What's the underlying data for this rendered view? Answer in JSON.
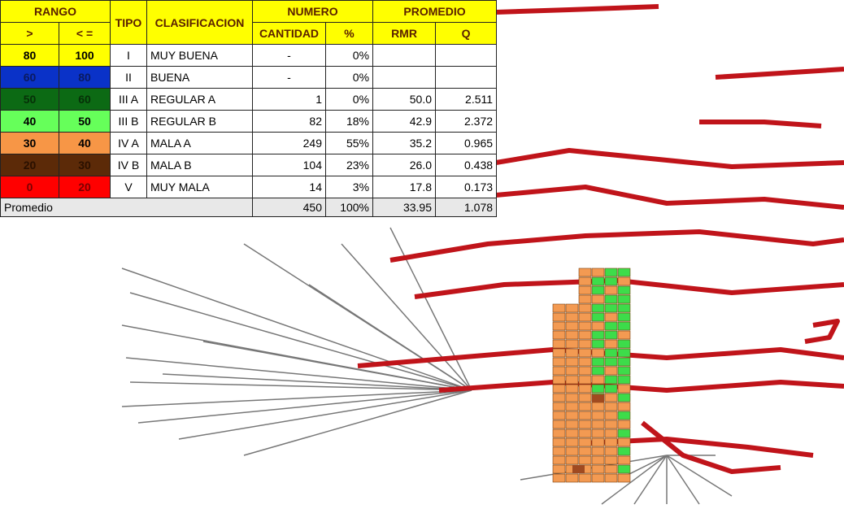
{
  "header": {
    "rango": "RANGO",
    "tipo": "TIPO",
    "clasificacion": "CLASIFICACION",
    "numero": "NUMERO",
    "promedio": "PROMEDIO",
    "subheader": [
      ">",
      "< =",
      "CANTIDAD",
      "%",
      "RMR",
      "Q"
    ]
  },
  "rows": [
    {
      "gt": "80",
      "le": "100",
      "tipo": "I",
      "clasificacion": "MUY BUENA",
      "cantidad": "-",
      "pct": "0%",
      "rmr": "",
      "q": "",
      "color": "#ffff00",
      "text_color": "#000000"
    },
    {
      "gt": "60",
      "le": "80",
      "tipo": "II",
      "clasificacion": "BUENA",
      "cantidad": "-",
      "pct": "0%",
      "rmr": "",
      "q": "",
      "color": "#0a32c8",
      "text_color": "#0a1a60"
    },
    {
      "gt": "50",
      "le": "60",
      "tipo": "III A",
      "clasificacion": "REGULAR A",
      "cantidad": "1",
      "pct": "0%",
      "rmr": "50.0",
      "q": "2.511",
      "color": "#0c6a14",
      "text_color": "#063008"
    },
    {
      "gt": "40",
      "le": "50",
      "tipo": "III B",
      "clasificacion": "REGULAR B",
      "cantidad": "82",
      "pct": "18%",
      "rmr": "42.9",
      "q": "2.372",
      "color": "#66ff5a",
      "text_color": "#000000"
    },
    {
      "gt": "30",
      "le": "40",
      "tipo": "IV A",
      "clasificacion": "MALA A",
      "cantidad": "249",
      "pct": "55%",
      "rmr": "35.2",
      "q": "0.965",
      "color": "#f79646",
      "text_color": "#000000"
    },
    {
      "gt": "20",
      "le": "30",
      "tipo": "IV B",
      "clasificacion": "MALA B",
      "cantidad": "104",
      "pct": "23%",
      "rmr": "26.0",
      "q": "0.438",
      "color": "#5c2a08",
      "text_color": "#2a1000"
    },
    {
      "gt": "0",
      "le": "20",
      "tipo": "V",
      "clasificacion": "MUY MALA",
      "cantidad": "14",
      "pct": "3%",
      "rmr": "17.8",
      "q": "0.173",
      "color": "#ff0000",
      "text_color": "#7a0000"
    }
  ],
  "footer": {
    "label": "Promedio",
    "cantidad": "450",
    "pct": "100%",
    "rmr": "33.95",
    "q": "1.078"
  }
}
